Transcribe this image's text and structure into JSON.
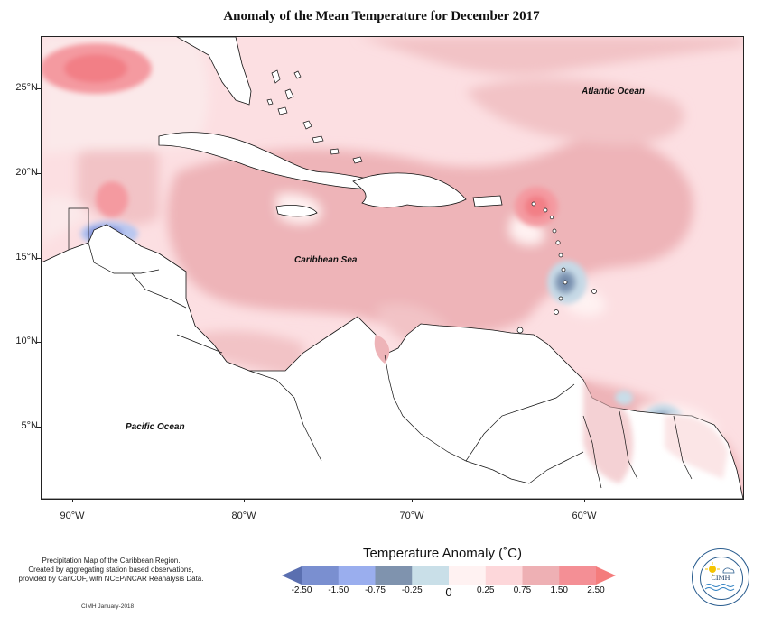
{
  "title": "Anomaly of the Mean Temperature for December 2017",
  "map_labels": {
    "atlantic": "Atlantic Ocean",
    "caribbean": "Caribbean Sea",
    "pacific": "Pacific Ocean"
  },
  "axes": {
    "lat_ticks": [
      "25°N",
      "20°N",
      "15°N",
      "10°N",
      "5°N"
    ],
    "lon_ticks": [
      "90°W",
      "80°W",
      "70°W",
      "60°W"
    ]
  },
  "footer": {
    "description_line1": "Precipitation Map of the Caribbean Region.",
    "description_line2": "Created by aggregating station based observations,",
    "description_line3": "provided by CariCOF, with NCEP/NCAR Reanalysis Data.",
    "credit": "CIMH January-2018"
  },
  "legend": {
    "title": "Temperature Anomaly (˚C)",
    "tick_labels": [
      "-2.50",
      "-1.50",
      "-0.75",
      "-0.25",
      "0",
      "0.25",
      "0.75",
      "1.50",
      "2.50"
    ],
    "colors": [
      "#5a6fb0",
      "#7a8fd0",
      "#9aaeee",
      "#7f93ae",
      "#c9dfe8",
      "#fff2f2",
      "#fdd7da",
      "#eeb0b4",
      "#f48f95",
      "#f47c7c"
    ]
  },
  "logo": {
    "text": "CIMH"
  }
}
